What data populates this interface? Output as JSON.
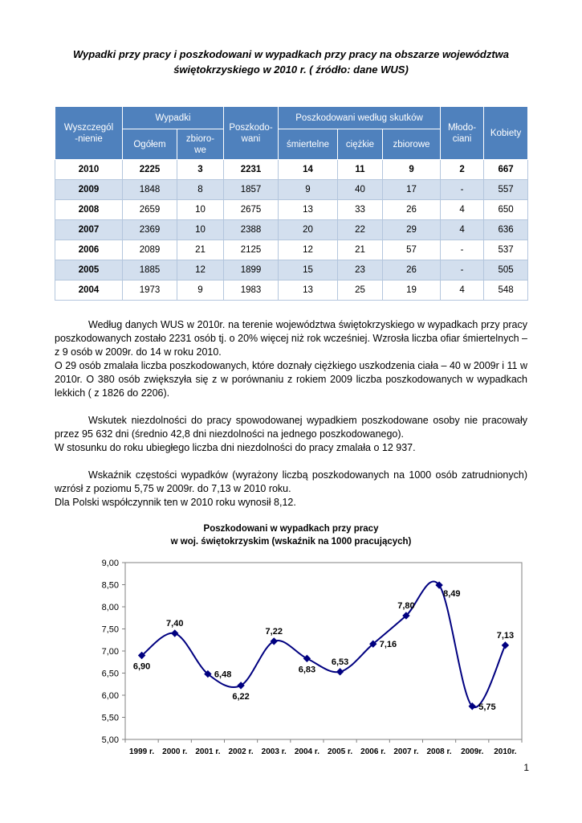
{
  "page_number": "1",
  "title": {
    "line1": "Wypadki przy pracy i poszkodowani w wypadkach przy pracy  na obszarze województwa",
    "line2": "świętokrzyskiego w 2010 r. ( źródło: dane  WUS)"
  },
  "table": {
    "headers": {
      "specification": "Wyszczegól\n-nienie",
      "accidents_group": "Wypadki",
      "accidents_total": "Ogółem",
      "accidents_collective": "zbioro-\nwe",
      "injured_total": "Poszkodo-\nwani",
      "by_effect_group": "Poszkodowani według skutków",
      "effect_fatal": "śmiertelne",
      "effect_severe": "ciężkie",
      "effect_collective": "zbiorowe",
      "juveniles": "Młodo-\nciani",
      "women": "Kobiety"
    },
    "rows": [
      {
        "year": "2010",
        "values": [
          "2225",
          "3",
          "2231",
          "14",
          "11",
          "9",
          "2",
          "667"
        ]
      },
      {
        "year": "2009",
        "values": [
          "1848",
          "8",
          "1857",
          "9",
          "40",
          "17",
          "-",
          "557"
        ]
      },
      {
        "year": "2008",
        "values": [
          "2659",
          "10",
          "2675",
          "13",
          "33",
          "26",
          "4",
          "650"
        ]
      },
      {
        "year": "2007",
        "values": [
          "2369",
          "10",
          "2388",
          "20",
          "22",
          "29",
          "4",
          "636"
        ]
      },
      {
        "year": "2006",
        "values": [
          "2089",
          "21",
          "2125",
          "12",
          "21",
          "57",
          "-",
          "537"
        ]
      },
      {
        "year": "2005",
        "values": [
          "1885",
          "12",
          "1899",
          "15",
          "23",
          "26",
          "-",
          "505"
        ]
      },
      {
        "year": "2004",
        "values": [
          "1973",
          "9",
          "1983",
          "13",
          "25",
          "19",
          "4",
          "548"
        ]
      }
    ]
  },
  "paragraphs": [
    "Według danych WUS w 2010r. na terenie województwa świętokrzyskiego w wypadkach przy pracy  poszkodowanych zostało 2231 osób tj. o 20% więcej niż rok wcześniej. Wzrosła liczba ofiar śmiertelnych – z 9 osób w 2009r. do 14 w roku 2010.",
    "O 29 osób zmalała liczba poszkodowanych, które doznały ciężkiego uszkodzenia ciała – 40 w 2009r i 11 w 2010r. O 380 osób zwiększyła się z w porównaniu z rokiem 2009 liczba poszkodowanych w wypadkach lekkich ( z  1826 do 2206).",
    "Wskutek niezdolności do pracy spowodowanej wypadkiem poszkodowane osoby nie pracowały przez 95 632 dni (średnio  42,8 dni niezdolności na jednego poszkodowanego).",
    "W stosunku do roku ubiegłego liczba dni niezdolności do pracy zmalała o 12 937.",
    "Wskaźnik częstości    wypadków (wyrażony liczbą poszkodowanych   na 1000 osób zatrudnionych) wzrósł z poziomu 5,75 w 2009r. do  7,13  w 2010 roku.",
    "Dla Polski współczynnik ten w 2010 roku wynosił 8,12."
  ],
  "chart_data": {
    "type": "line",
    "title_line1": "Poszkodowani w wypadkach przy pracy",
    "title_line2": "w woj. świętokrzyskim (wskaźnik na 1000 pracujących)",
    "categories": [
      "1999 r.",
      "2000 r.",
      "2001 r.",
      "2002 r.",
      "2003 r.",
      "2004 r.",
      "2005 r.",
      "2006 r.",
      "2007 r.",
      "2008 r.",
      "2009r.",
      "2010r."
    ],
    "values": [
      6.9,
      7.4,
      6.48,
      6.22,
      7.22,
      6.83,
      6.53,
      7.16,
      7.8,
      8.49,
      5.75,
      7.13
    ],
    "labels": [
      "6,90",
      "7,40",
      "6,48",
      "6,22",
      "7,22",
      "6,83",
      "6,53",
      "7,16",
      "7,80",
      "8,49",
      "5,75",
      "7,13"
    ],
    "label_placements": [
      "below",
      "above",
      "right",
      "below",
      "above",
      "below",
      "above",
      "right",
      "above",
      "below-right",
      "right",
      "above"
    ],
    "ylim": [
      5.0,
      9.0
    ],
    "ytick_step": 0.5,
    "ytick_labels": [
      "5,00",
      "5,50",
      "6,00",
      "6,50",
      "7,00",
      "7,50",
      "8,00",
      "8,50",
      "9,00"
    ],
    "grid": false,
    "legend": "none",
    "line_color": "#000080",
    "marker": "diamond"
  },
  "colors": {
    "table_header_bg": "#4f81bd",
    "table_band_bg": "#d3dfee",
    "chart_line": "#000080"
  }
}
